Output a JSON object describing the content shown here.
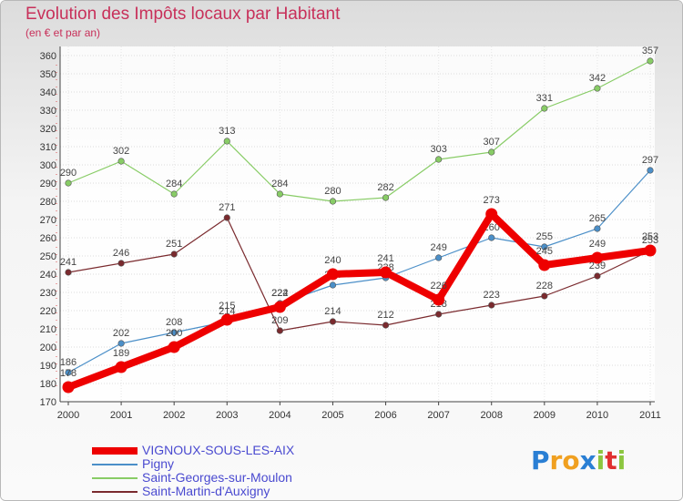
{
  "header": {
    "title": "Evolution des Impôts locaux par Habitant",
    "subtitle": "(en € et par an)"
  },
  "chart_data": {
    "type": "line",
    "title": "Evolution des Impôts locaux par Habitant",
    "subtitle": "(en € et par an)",
    "xlabel": "",
    "ylabel": "",
    "ylim": [
      170,
      360
    ],
    "ytick_step": 10,
    "grid": "horizontal",
    "legend_position": "bottom-left",
    "x": [
      "2000",
      "2001",
      "2002",
      "2003",
      "2004",
      "2005",
      "2006",
      "2007",
      "2008",
      "2009",
      "2010",
      "2011"
    ],
    "series": [
      {
        "name": "Saint-Martin-d'Auxigny",
        "color": "#7a2a2e",
        "values": [
          241,
          246,
          251,
          271,
          209,
          214,
          212,
          218,
          223,
          228,
          239,
          253
        ]
      },
      {
        "name": "Saint-Georges-sur-Moulon",
        "color": "#88cc66",
        "values": [
          290,
          302,
          284,
          313,
          284,
          280,
          282,
          303,
          307,
          331,
          342,
          357
        ]
      },
      {
        "name": "Pigny",
        "color": "#4b8fc8",
        "values": [
          186,
          202,
          208,
          214,
          224,
          234,
          238,
          249,
          260,
          255,
          265,
          297
        ]
      },
      {
        "name": "VIGNOUX-SOUS-LES-AIX",
        "color": "#ee0000",
        "values": [
          178,
          189,
          200,
          215,
          222,
          240,
          241,
          226,
          273,
          245,
          249,
          253
        ]
      }
    ]
  },
  "legend": {
    "items": [
      {
        "label": "VIGNOUX-SOUS-LES-AIX",
        "color": "#ee0000"
      },
      {
        "label": "Pigny",
        "color": "#4b8fc8"
      },
      {
        "label": "Saint-Georges-sur-Moulon",
        "color": "#88cc66"
      },
      {
        "label": "Saint-Martin-d'Auxigny",
        "color": "#7a2a2e"
      }
    ]
  },
  "brand": {
    "name": "Proxiti",
    "letters": [
      {
        "char": "P",
        "color": "#2a7fd4"
      },
      {
        "char": "r",
        "color": "#f0a020"
      },
      {
        "char": "o",
        "color": "#f0a020"
      },
      {
        "char": "x",
        "color": "#2a7fd4"
      },
      {
        "char": "i",
        "color": "#8cc63f"
      },
      {
        "char": "t",
        "color": "#e03030"
      },
      {
        "char": "i",
        "color": "#8cc63f"
      }
    ]
  }
}
